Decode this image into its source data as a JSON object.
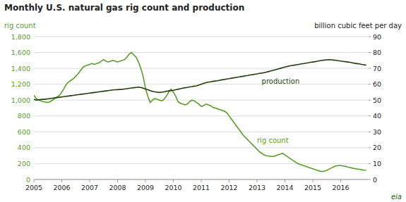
{
  "chart_data": {
    "type": "line",
    "title": "Monthly U.S. natural gas rig count and production",
    "y_label": "rig count",
    "y2_label": "billion cubic feet per day",
    "annotations": [
      {
        "text": "eia",
        "color": "#1a5c1a"
      }
    ],
    "grid": true,
    "xlim": [
      2005,
      2017
    ],
    "xticks": [
      2005,
      2006,
      2007,
      2008,
      2009,
      2010,
      2011,
      2012,
      2013,
      2014,
      2015,
      2016
    ],
    "ylim": [
      0,
      1800
    ],
    "yticks": [
      0,
      200,
      400,
      600,
      800,
      {
        "value": 1000,
        "label": "1,000"
      },
      {
        "value": 1200,
        "label": "1,200"
      },
      {
        "value": 1400,
        "label": "1,400"
      },
      {
        "value": 1600,
        "label": "1,600"
      },
      {
        "value": 1800,
        "label": "1,800"
      }
    ],
    "y2lim": [
      0,
      90
    ],
    "y2ticks": [
      0,
      10,
      20,
      30,
      40,
      50,
      60,
      70,
      80,
      90
    ],
    "x": [
      2005,
      2005.083333,
      2005.166667,
      2005.25,
      2005.333333,
      2005.416667,
      2005.5,
      2005.583333,
      2005.666667,
      2005.75,
      2005.833333,
      2005.916667,
      2006,
      2006.083333,
      2006.166667,
      2006.25,
      2006.333333,
      2006.416667,
      2006.5,
      2006.583333,
      2006.666667,
      2006.75,
      2006.833333,
      2006.916667,
      2007,
      2007.083333,
      2007.166667,
      2007.25,
      2007.333333,
      2007.416667,
      2007.5,
      2007.583333,
      2007.666667,
      2007.75,
      2007.833333,
      2007.916667,
      2008,
      2008.083333,
      2008.166667,
      2008.25,
      2008.333333,
      2008.416667,
      2008.5,
      2008.583333,
      2008.666667,
      2008.75,
      2008.833333,
      2008.916667,
      2009,
      2009.083333,
      2009.166667,
      2009.25,
      2009.333333,
      2009.416667,
      2009.5,
      2009.583333,
      2009.666667,
      2009.75,
      2009.833333,
      2009.916667,
      2010,
      2010.083333,
      2010.166667,
      2010.25,
      2010.333333,
      2010.416667,
      2010.5,
      2010.583333,
      2010.666667,
      2010.75,
      2010.833333,
      2010.916667,
      2011,
      2011.083333,
      2011.166667,
      2011.25,
      2011.333333,
      2011.416667,
      2011.5,
      2011.583333,
      2011.666667,
      2011.75,
      2011.833333,
      2011.916667,
      2012,
      2012.083333,
      2012.166667,
      2012.25,
      2012.333333,
      2012.416667,
      2012.5,
      2012.583333,
      2012.666667,
      2012.75,
      2012.833333,
      2012.916667,
      2013,
      2013.083333,
      2013.166667,
      2013.25,
      2013.333333,
      2013.416667,
      2013.5,
      2013.583333,
      2013.666667,
      2013.75,
      2013.833333,
      2013.916667,
      2014,
      2014.083333,
      2014.166667,
      2014.25,
      2014.333333,
      2014.416667,
      2014.5,
      2014.583333,
      2014.666667,
      2014.75,
      2014.833333,
      2014.916667,
      2015,
      2015.083333,
      2015.166667,
      2015.25,
      2015.333333,
      2015.416667,
      2015.5,
      2015.583333,
      2015.666667,
      2015.75,
      2015.833333,
      2015.916667,
      2016,
      2016.083333,
      2016.166667,
      2016.25,
      2016.333333,
      2016.416667,
      2016.5,
      2016.583333,
      2016.666667,
      2016.75,
      2016.833333,
      2016.916667
    ],
    "series": [
      {
        "name": "rig count",
        "color": "#5a9e28",
        "values": [
          1060,
          1020,
          1000,
          990,
          980,
          975,
          970,
          980,
          1000,
          1020,
          1040,
          1060,
          1100,
          1150,
          1200,
          1230,
          1250,
          1270,
          1300,
          1330,
          1370,
          1410,
          1430,
          1440,
          1450,
          1460,
          1450,
          1460,
          1470,
          1490,
          1510,
          1490,
          1480,
          1490,
          1500,
          1490,
          1480,
          1490,
          1500,
          1510,
          1540,
          1580,
          1600,
          1570,
          1540,
          1480,
          1400,
          1300,
          1150,
          1050,
          970,
          1000,
          1020,
          1010,
          1000,
          990,
          1010,
          1050,
          1100,
          1140,
          1100,
          1050,
          980,
          960,
          950,
          940,
          950,
          980,
          1000,
          990,
          970,
          950,
          920,
          930,
          950,
          940,
          930,
          910,
          900,
          890,
          880,
          870,
          860,
          840,
          800,
          760,
          720,
          680,
          640,
          600,
          560,
          530,
          500,
          470,
          440,
          410,
          380,
          350,
          330,
          310,
          300,
          295,
          290,
          290,
          300,
          310,
          320,
          330,
          310,
          290,
          270,
          250,
          230,
          210,
          195,
          185,
          175,
          165,
          155,
          145,
          135,
          125,
          115,
          105,
          100,
          105,
          115,
          130,
          145,
          160,
          170,
          175,
          175,
          170,
          165,
          158,
          150,
          143,
          138,
          132,
          128,
          123,
          118,
          115
        ]
      },
      {
        "name": "production",
        "color": "#1f3d0c",
        "axis": "y2",
        "values": [
          50.5,
          50.0,
          50.2,
          50.4,
          50.5,
          50.6,
          50.8,
          51.0,
          51.2,
          51.4,
          51.6,
          51.8,
          52.0,
          52.2,
          52.4,
          52.6,
          52.8,
          53.0,
          53.2,
          53.4,
          53.6,
          53.8,
          54.0,
          54.2,
          54.4,
          54.6,
          54.8,
          55.0,
          55.2,
          55.4,
          55.6,
          55.8,
          56.0,
          56.2,
          56.4,
          56.5,
          56.6,
          56.7,
          56.8,
          57.0,
          57.2,
          57.4,
          57.6,
          57.8,
          58.0,
          58.2,
          58.0,
          57.5,
          57.0,
          56.5,
          56.0,
          55.5,
          55.2,
          55.0,
          54.8,
          55.0,
          55.2,
          55.5,
          55.8,
          56.0,
          56.2,
          56.5,
          56.8,
          57.2,
          57.5,
          57.8,
          58.0,
          58.3,
          58.5,
          58.8,
          59.0,
          59.5,
          60.0,
          60.5,
          61.0,
          61.3,
          61.5,
          61.8,
          62.0,
          62.2,
          62.5,
          62.8,
          63.0,
          63.3,
          63.5,
          63.8,
          64.0,
          64.3,
          64.5,
          64.8,
          65.0,
          65.3,
          65.5,
          65.8,
          66.0,
          66.3,
          66.5,
          66.8,
          67.0,
          67.3,
          67.6,
          68.0,
          68.4,
          68.8,
          69.2,
          69.6,
          70.0,
          70.4,
          70.8,
          71.2,
          71.5,
          71.8,
          72.0,
          72.3,
          72.5,
          72.8,
          73.0,
          73.3,
          73.5,
          73.8,
          74.0,
          74.2,
          74.5,
          74.8,
          75.0,
          75.2,
          75.4,
          75.5,
          75.4,
          75.2,
          75.0,
          74.8,
          74.6,
          74.4,
          74.2,
          74.0,
          73.8,
          73.5,
          73.2,
          73.0,
          72.8,
          72.5,
          72.3,
          72.0
        ]
      }
    ]
  }
}
